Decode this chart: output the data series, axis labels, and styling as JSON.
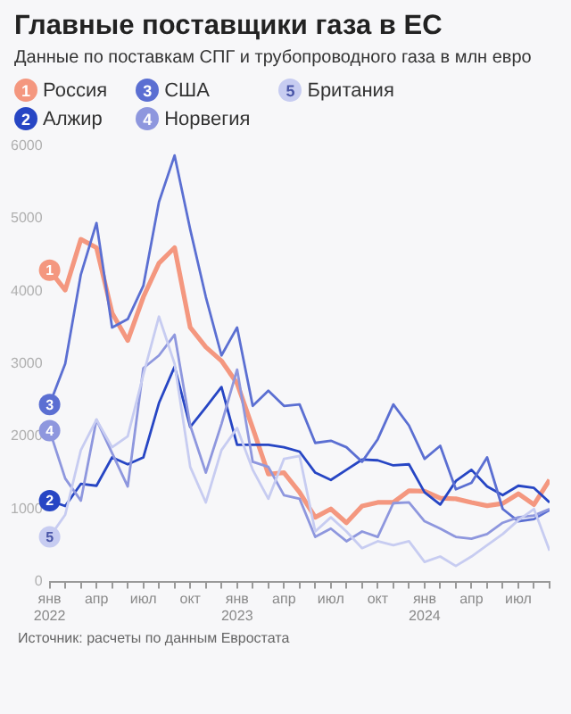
{
  "chart_data": {
    "type": "line",
    "title": "Главные поставщики газа в ЕС",
    "subtitle": "Данные по поставкам СПГ и трубопроводного газа в млн евро",
    "x": [
      "2022-01",
      "2022-02",
      "2022-03",
      "2022-04",
      "2022-05",
      "2022-06",
      "2022-07",
      "2022-08",
      "2022-09",
      "2022-10",
      "2022-11",
      "2022-12",
      "2023-01",
      "2023-02",
      "2023-03",
      "2023-04",
      "2023-05",
      "2023-06",
      "2023-07",
      "2023-08",
      "2023-09",
      "2023-10",
      "2023-11",
      "2023-12",
      "2024-01",
      "2024-02",
      "2024-03",
      "2024-04",
      "2024-05",
      "2024-06",
      "2024-07",
      "2024-08",
      "2024-09"
    ],
    "series": [
      {
        "name": "Россия",
        "color": "#f4977f",
        "values": [
          4290,
          4015,
          4715,
          4600,
          3700,
          3320,
          3920,
          4385,
          4600,
          3500,
          3230,
          3040,
          2730,
          2115,
          1480,
          1500,
          1230,
          885,
          1000,
          810,
          1040,
          1090,
          1090,
          1250,
          1245,
          1150,
          1140,
          1090,
          1045,
          1075,
          1210,
          1060,
          1400
        ]
      },
      {
        "name": "Алжир",
        "color": "#2746c4",
        "values": [
          1115,
          1040,
          1345,
          1320,
          1710,
          1615,
          1710,
          2460,
          2960,
          2130,
          2400,
          2680,
          1885,
          1885,
          1885,
          1850,
          1790,
          1500,
          1400,
          1540,
          1680,
          1670,
          1600,
          1615,
          1230,
          1060,
          1385,
          1540,
          1310,
          1190,
          1320,
          1290,
          1090
        ]
      },
      {
        "name": "США",
        "color": "#5b6fd2",
        "values": [
          2440,
          3000,
          4230,
          4940,
          3500,
          3615,
          4075,
          5230,
          5870,
          4850,
          3920,
          3115,
          3500,
          2420,
          2630,
          2420,
          2440,
          1910,
          1940,
          1850,
          1650,
          1960,
          2440,
          2150,
          1690,
          1870,
          1270,
          1360,
          1710,
          1000,
          830,
          860,
          985
        ]
      },
      {
        "name": "Норвегия",
        "color": "#8e97de",
        "values": [
          2080,
          1420,
          1115,
          2230,
          1770,
          1310,
          2940,
          3115,
          3400,
          2150,
          1500,
          2170,
          2920,
          1650,
          1580,
          1190,
          1140,
          615,
          730,
          555,
          690,
          615,
          1080,
          1090,
          830,
          730,
          615,
          590,
          655,
          810,
          885,
          910,
          1000
        ]
      },
      {
        "name": "Британия",
        "color": "#c7ccf1",
        "values": [
          615,
          920,
          1810,
          2230,
          1850,
          2000,
          2850,
          3650,
          3000,
          1580,
          1090,
          1810,
          2115,
          1540,
          1140,
          1690,
          1730,
          690,
          885,
          690,
          460,
          555,
          500,
          555,
          270,
          345,
          215,
          345,
          500,
          655,
          845,
          1000,
          425
        ]
      }
    ],
    "xlim": [
      "2022-01",
      "2024-09"
    ],
    "xticks": [
      {
        "value": "2022-01",
        "label": "янв\n2022"
      },
      {
        "value": "2022-02",
        "label": null
      },
      {
        "value": "2022-03",
        "label": null
      },
      {
        "value": "2022-04",
        "label": "апр"
      },
      {
        "value": "2022-05",
        "label": null
      },
      {
        "value": "2022-06",
        "label": null
      },
      {
        "value": "2022-07",
        "label": "июл"
      },
      {
        "value": "2022-08",
        "label": null
      },
      {
        "value": "2022-09",
        "label": null
      },
      {
        "value": "2022-10",
        "label": "окт"
      },
      {
        "value": "2022-11",
        "label": null
      },
      {
        "value": "2022-12",
        "label": null
      },
      {
        "value": "2023-01",
        "label": "янв\n2023"
      },
      {
        "value": "2023-02",
        "label": null
      },
      {
        "value": "2023-03",
        "label": null
      },
      {
        "value": "2023-04",
        "label": "апр"
      },
      {
        "value": "2023-05",
        "label": null
      },
      {
        "value": "2023-06",
        "label": null
      },
      {
        "value": "2023-07",
        "label": "июл"
      },
      {
        "value": "2023-08",
        "label": null
      },
      {
        "value": "2023-09",
        "label": null
      },
      {
        "value": "2023-10",
        "label": "окт"
      },
      {
        "value": "2023-11",
        "label": null
      },
      {
        "value": "2023-12",
        "label": null
      },
      {
        "value": "2024-01",
        "label": "янв\n2024"
      },
      {
        "value": "2024-02",
        "label": null
      },
      {
        "value": "2024-03",
        "label": null
      },
      {
        "value": "2024-04",
        "label": "апр"
      },
      {
        "value": "2024-05",
        "label": null
      },
      {
        "value": "2024-06",
        "label": null
      },
      {
        "value": "2024-07",
        "label": "июл"
      },
      {
        "value": "2024-08",
        "label": null
      },
      {
        "value": "2024-09",
        "label": null
      }
    ],
    "ylim": [
      0,
      6000
    ],
    "yticks": [
      0,
      1000,
      2000,
      3000,
      4000,
      5000,
      6000
    ],
    "grid": false,
    "legend": "top",
    "marker": "none",
    "line_style": "solid",
    "annotations": [
      {
        "text": "1",
        "x": "2022-01",
        "y": 4290
      },
      {
        "text": "2",
        "x": "2022-01",
        "y": 1115
      },
      {
        "text": "3",
        "x": "2022-01",
        "y": 2440
      },
      {
        "text": "4",
        "x": "2022-01",
        "y": 2080
      },
      {
        "text": "5",
        "x": "2022-01",
        "y": 615
      },
      "Источник: расчеты по данным Евростата"
    ]
  }
}
